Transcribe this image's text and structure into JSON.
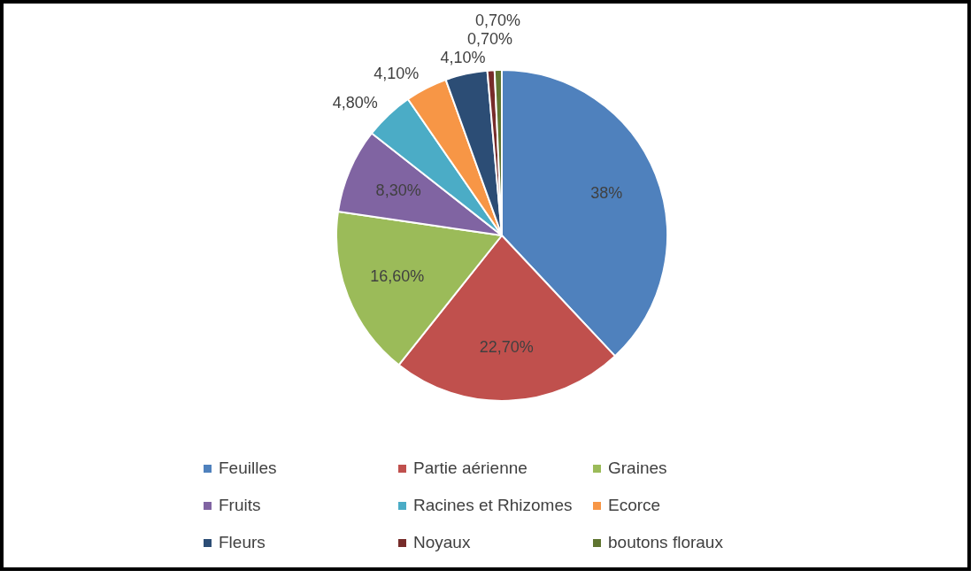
{
  "chart_data": {
    "type": "pie",
    "categories": [
      "Feuilles",
      "Partie aérienne",
      "Graines",
      "Fruits",
      "Racines et Rhizomes",
      "Ecorce",
      "Fleurs",
      "Noyaux",
      "boutons floraux"
    ],
    "values": [
      38,
      22.7,
      16.6,
      8.3,
      4.8,
      4.1,
      4.1,
      0.7,
      0.7
    ],
    "colors": [
      "#4f81bd",
      "#c0504d",
      "#9bbb59",
      "#8064a2",
      "#4bacc6",
      "#f79646",
      "#2c4d75",
      "#772c2a",
      "#5f7530"
    ],
    "value_labels": [
      "38%",
      "22,70%",
      "16,60%",
      "8,30%",
      "4,80%",
      "4,10%",
      "4,10%",
      "0,70%",
      "0,70%"
    ],
    "legend": "bottom"
  }
}
